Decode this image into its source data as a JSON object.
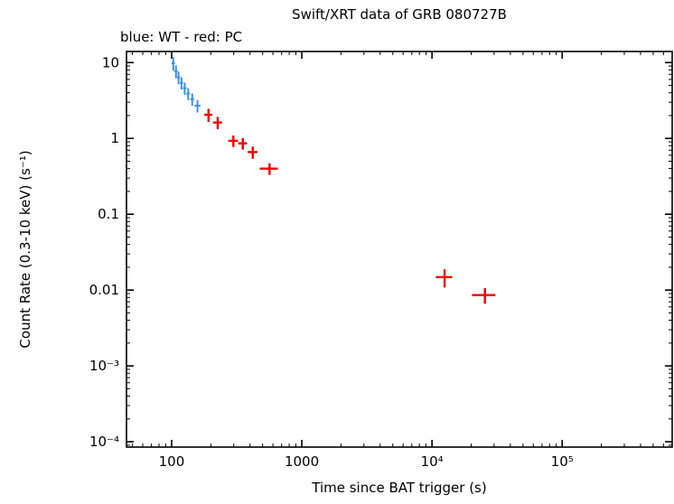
{
  "chart_data": {
    "type": "scatter",
    "title": "Swift/XRT data of GRB 080727B",
    "subtitle": "blue: WT - red: PC",
    "xlabel": "Time since BAT trigger (s)",
    "ylabel": "Count Rate (0.3-10 keV) (s⁻¹)",
    "xscale": "log",
    "yscale": "log",
    "xlim": [
      45,
      700000
    ],
    "ylim": [
      8.5e-05,
      14
    ],
    "grid": false,
    "legend_position": "top-left-text",
    "x_ticks": [
      {
        "value": 100,
        "label": "100"
      },
      {
        "value": 1000,
        "label": "1000"
      },
      {
        "value": 10000,
        "label": "10⁴"
      },
      {
        "value": 100000,
        "label": "10⁵"
      }
    ],
    "y_ticks": [
      {
        "value": 10,
        "label": "10"
      },
      {
        "value": 1,
        "label": "1"
      },
      {
        "value": 0.1,
        "label": "0.1"
      },
      {
        "value": 0.01,
        "label": "0.01"
      },
      {
        "value": 0.001,
        "label": "10⁻³"
      },
      {
        "value": 0.0001,
        "label": "10⁻⁴"
      }
    ],
    "series": [
      {
        "name": "WT",
        "color": "#4090e8",
        "stroke_width": 2,
        "marker": "cross-with-error-bars",
        "points": [
          {
            "t": 103,
            "t_err": 3,
            "rate": 9.8,
            "rate_err": 2.0
          },
          {
            "t": 108,
            "t_err": 3,
            "rate": 7.7,
            "rate_err": 1.5
          },
          {
            "t": 113,
            "t_err": 3,
            "rate": 6.4,
            "rate_err": 1.2
          },
          {
            "t": 119,
            "t_err": 3,
            "rate": 5.4,
            "rate_err": 1.0
          },
          {
            "t": 126,
            "t_err": 4,
            "rate": 4.6,
            "rate_err": 0.85
          },
          {
            "t": 134,
            "t_err": 4,
            "rate": 3.9,
            "rate_err": 0.7
          },
          {
            "t": 144,
            "t_err": 5,
            "rate": 3.3,
            "rate_err": 0.6
          },
          {
            "t": 158,
            "t_err": 8,
            "rate": 2.7,
            "rate_err": 0.5
          }
        ]
      },
      {
        "name": "PC",
        "color": "#ee0000",
        "stroke_width": 2.4,
        "marker": "cross-with-error-bars",
        "points": [
          {
            "t": 192,
            "t_err": 14,
            "rate": 2.05,
            "rate_err": 0.4
          },
          {
            "t": 226,
            "t_err": 18,
            "rate": 1.62,
            "rate_err": 0.3
          },
          {
            "t": 298,
            "t_err": 26,
            "rate": 0.93,
            "rate_err": 0.16
          },
          {
            "t": 352,
            "t_err": 28,
            "rate": 0.86,
            "rate_err": 0.15
          },
          {
            "t": 420,
            "t_err": 36,
            "rate": 0.66,
            "rate_err": 0.12
          },
          {
            "t": 565,
            "t_err": 90,
            "rate": 0.4,
            "rate_err": 0.07
          },
          {
            "t": 12500,
            "t_err": 1800,
            "rate": 0.0148,
            "rate_err": 0.004
          },
          {
            "t": 25500,
            "t_err": 5200,
            "rate": 0.0086,
            "rate_err": 0.002
          }
        ]
      }
    ]
  }
}
